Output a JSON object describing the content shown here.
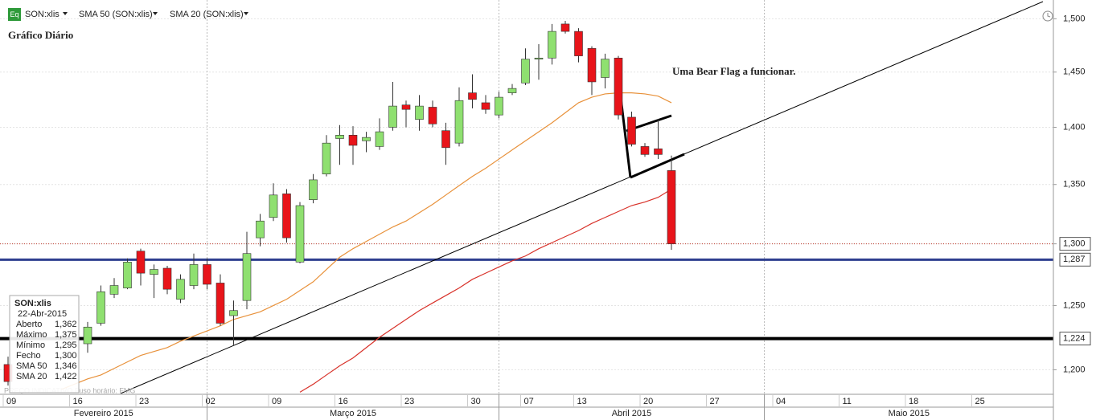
{
  "chart_data": {
    "type": "candlestick",
    "subtitle": "Gráfico Diário",
    "annotation": "Uma Bear Flag a funcionar.",
    "icon": "Eq",
    "series_name": "SON:xlis",
    "up_color": "#8fe070",
    "down_color": "#e8141a",
    "log_scale": true,
    "grid": true,
    "footer": "PREÇO INDICATIVO   Fuso horário: FMG",
    "categories": [
      "09",
      null,
      null,
      null,
      null,
      "16",
      null,
      null,
      null,
      null,
      "23",
      null,
      null,
      null,
      null,
      "02",
      null,
      null,
      null,
      null,
      "09",
      null,
      null,
      null,
      null,
      "16",
      null,
      null,
      null,
      null,
      "23",
      null,
      null,
      null,
      null,
      "30",
      null,
      null,
      null,
      "07",
      null,
      null,
      null,
      "13",
      null,
      null,
      null,
      null,
      "20",
      null,
      null,
      null,
      null,
      "27",
      null,
      null,
      null,
      null,
      "04",
      null,
      null,
      null,
      null,
      "11",
      null,
      null,
      null,
      null,
      "18",
      null,
      null,
      null,
      null,
      "25",
      null,
      null,
      null,
      null
    ],
    "months": [
      "Fevereiro 2015",
      "Março 2015",
      "Abril 2015",
      "Maio 2015"
    ],
    "open": [
      1.204,
      null,
      null,
      null,
      null,
      null,
      1.22,
      1.236,
      1.259,
      1.264,
      1.294,
      1.275,
      1.28,
      1.255,
      1.266,
      1.283,
      1.268,
      1.242,
      1.254,
      1.305,
      1.322,
      1.342,
      1.285,
      1.337,
      1.359,
      1.39,
      1.393,
      1.388,
      1.383,
      1.4,
      1.42,
      1.407,
      1.418,
      1.397,
      1.386,
      1.431,
      1.422,
      1.411,
      1.431,
      1.44,
      1.462,
      1.463,
      1.495,
      1.488,
      1.472,
      1.445,
      1.463,
      1.409,
      1.383,
      1.381,
      1.362,
      null,
      null,
      null,
      null,
      null,
      null,
      null,
      null,
      null,
      null,
      null,
      null,
      null,
      null,
      null,
      null,
      null,
      null,
      null,
      null,
      null,
      null,
      null,
      null,
      null,
      null,
      null
    ],
    "high": [
      1.21,
      null,
      null,
      null,
      null,
      null,
      1.237,
      1.266,
      1.272,
      1.288,
      1.296,
      1.283,
      1.282,
      1.275,
      1.292,
      1.288,
      1.275,
      1.254,
      1.31,
      1.325,
      1.351,
      1.346,
      1.335,
      1.359,
      1.393,
      1.402,
      1.401,
      1.396,
      1.408,
      1.441,
      1.424,
      1.429,
      1.424,
      1.404,
      1.436,
      1.448,
      1.429,
      1.432,
      1.439,
      1.472,
      1.476,
      1.495,
      1.498,
      1.491,
      1.474,
      1.467,
      1.465,
      1.414,
      1.386,
      1.407,
      1.375,
      null,
      null,
      null,
      null,
      null,
      null,
      null,
      null,
      null,
      null,
      null,
      null,
      null,
      null,
      null,
      null,
      null,
      null,
      null,
      null,
      null,
      null,
      null,
      null,
      null,
      null,
      null
    ],
    "low": [
      1.188,
      null,
      null,
      null,
      null,
      null,
      1.213,
      1.234,
      1.256,
      1.263,
      1.266,
      1.256,
      1.259,
      1.252,
      1.263,
      1.263,
      1.234,
      1.219,
      1.247,
      1.298,
      1.319,
      1.301,
      1.284,
      1.334,
      1.357,
      1.367,
      1.367,
      1.378,
      1.38,
      1.397,
      1.4,
      1.397,
      1.4,
      1.367,
      1.383,
      1.417,
      1.412,
      1.408,
      1.429,
      1.438,
      1.443,
      1.457,
      1.486,
      1.459,
      1.429,
      1.435,
      1.407,
      1.383,
      1.374,
      1.372,
      1.295,
      null,
      null,
      null,
      null,
      null,
      null,
      null,
      null,
      null,
      null,
      null,
      null,
      null,
      null,
      null,
      null,
      null,
      null,
      null,
      null,
      null,
      null,
      null,
      null,
      null,
      null,
      null
    ],
    "close": [
      1.191,
      null,
      null,
      null,
      null,
      null,
      1.233,
      1.261,
      1.266,
      1.285,
      1.276,
      1.279,
      1.263,
      1.271,
      1.283,
      1.267,
      1.236,
      1.246,
      1.292,
      1.319,
      1.341,
      1.305,
      1.332,
      1.354,
      1.386,
      1.393,
      1.384,
      1.391,
      1.396,
      1.419,
      1.416,
      1.419,
      1.403,
      1.382,
      1.424,
      1.425,
      1.416,
      1.427,
      1.435,
      1.462,
      1.463,
      1.488,
      1.488,
      1.465,
      1.441,
      1.462,
      1.411,
      1.385,
      1.376,
      1.376,
      1.3,
      null,
      null,
      null,
      null,
      null,
      null,
      null,
      null,
      null,
      null,
      null,
      null,
      null,
      null,
      null,
      null,
      null,
      null,
      null,
      null,
      null,
      null,
      null,
      null,
      null,
      null,
      null
    ],
    "overlays": [
      {
        "name": "SMA 50 (SON:xlis)",
        "color": "#d8322a",
        "values": [
          null,
          null,
          null,
          null,
          null,
          null,
          null,
          null,
          null,
          null,
          null,
          null,
          null,
          null,
          null,
          null,
          null,
          null,
          null,
          null,
          null,
          null,
          1.183,
          1.189,
          1.196,
          1.203,
          1.209,
          1.217,
          1.225,
          1.232,
          1.239,
          1.246,
          1.252,
          1.258,
          1.264,
          1.271,
          1.276,
          1.281,
          1.286,
          1.29,
          1.296,
          1.301,
          1.306,
          1.311,
          1.317,
          1.322,
          1.327,
          1.332,
          1.335,
          1.339,
          1.346,
          null,
          null,
          null,
          null,
          null,
          null,
          null,
          null,
          null,
          null,
          null,
          null,
          null,
          null,
          null,
          null,
          null,
          null,
          null,
          null,
          null,
          null,
          null,
          null,
          null,
          null,
          null
        ]
      },
      {
        "name": "SMA 20 (SON:xlis)",
        "color": "#e8913a",
        "values": [
          null,
          null,
          null,
          null,
          1.185,
          1.189,
          1.193,
          1.196,
          1.201,
          1.206,
          1.211,
          1.214,
          1.217,
          1.222,
          1.226,
          1.23,
          1.234,
          1.239,
          1.242,
          1.245,
          1.25,
          1.255,
          1.262,
          1.269,
          1.279,
          1.289,
          1.296,
          1.302,
          1.308,
          1.314,
          1.319,
          1.326,
          1.333,
          1.341,
          1.349,
          1.357,
          1.364,
          1.372,
          1.38,
          1.388,
          1.396,
          1.404,
          1.413,
          1.422,
          1.427,
          1.43,
          1.431,
          1.431,
          1.43,
          1.428,
          1.422,
          null,
          null,
          null,
          null,
          null,
          null,
          null,
          null,
          null,
          null,
          null,
          null,
          null,
          null,
          null,
          null,
          null,
          null,
          null,
          null,
          null,
          null,
          null,
          null,
          null,
          null,
          null
        ]
      }
    ],
    "price_lines": [
      {
        "value": 1.3,
        "label": "1,300",
        "color": "#c0392b",
        "style": "dotted"
      },
      {
        "value": 1.287,
        "label": "1,287",
        "color": "#2e3f8f",
        "style": "thick"
      },
      {
        "value": 1.224,
        "label": "1,224",
        "color": "#000000",
        "style": "thick"
      }
    ],
    "ylim": [
      1.182,
      1.518
    ],
    "yticks": [
      {
        "value": 1.2,
        "label": "1,200"
      },
      {
        "value": 1.25,
        "label": "1,250"
      },
      {
        "value": 1.3,
        "label": "1,300"
      },
      {
        "value": 1.35,
        "label": "1,350"
      },
      {
        "value": 1.4,
        "label": "1,400"
      },
      {
        "value": 1.45,
        "label": "1,450"
      },
      {
        "value": 1.5,
        "label": "1,500"
      }
    ],
    "tooltip": {
      "title": "SON:xlis",
      "date": "22-Abr-2015",
      "rows": [
        {
          "label": "Aberto",
          "value": "1,362"
        },
        {
          "label": "Máximo",
          "value": "1,375"
        },
        {
          "label": "Mínimo",
          "value": "1,295"
        },
        {
          "label": "Fecho",
          "value": "1,300"
        },
        {
          "label": "SMA 50",
          "value": "1,346"
        },
        {
          "label": "SMA 20",
          "value": "1,422"
        }
      ]
    }
  }
}
